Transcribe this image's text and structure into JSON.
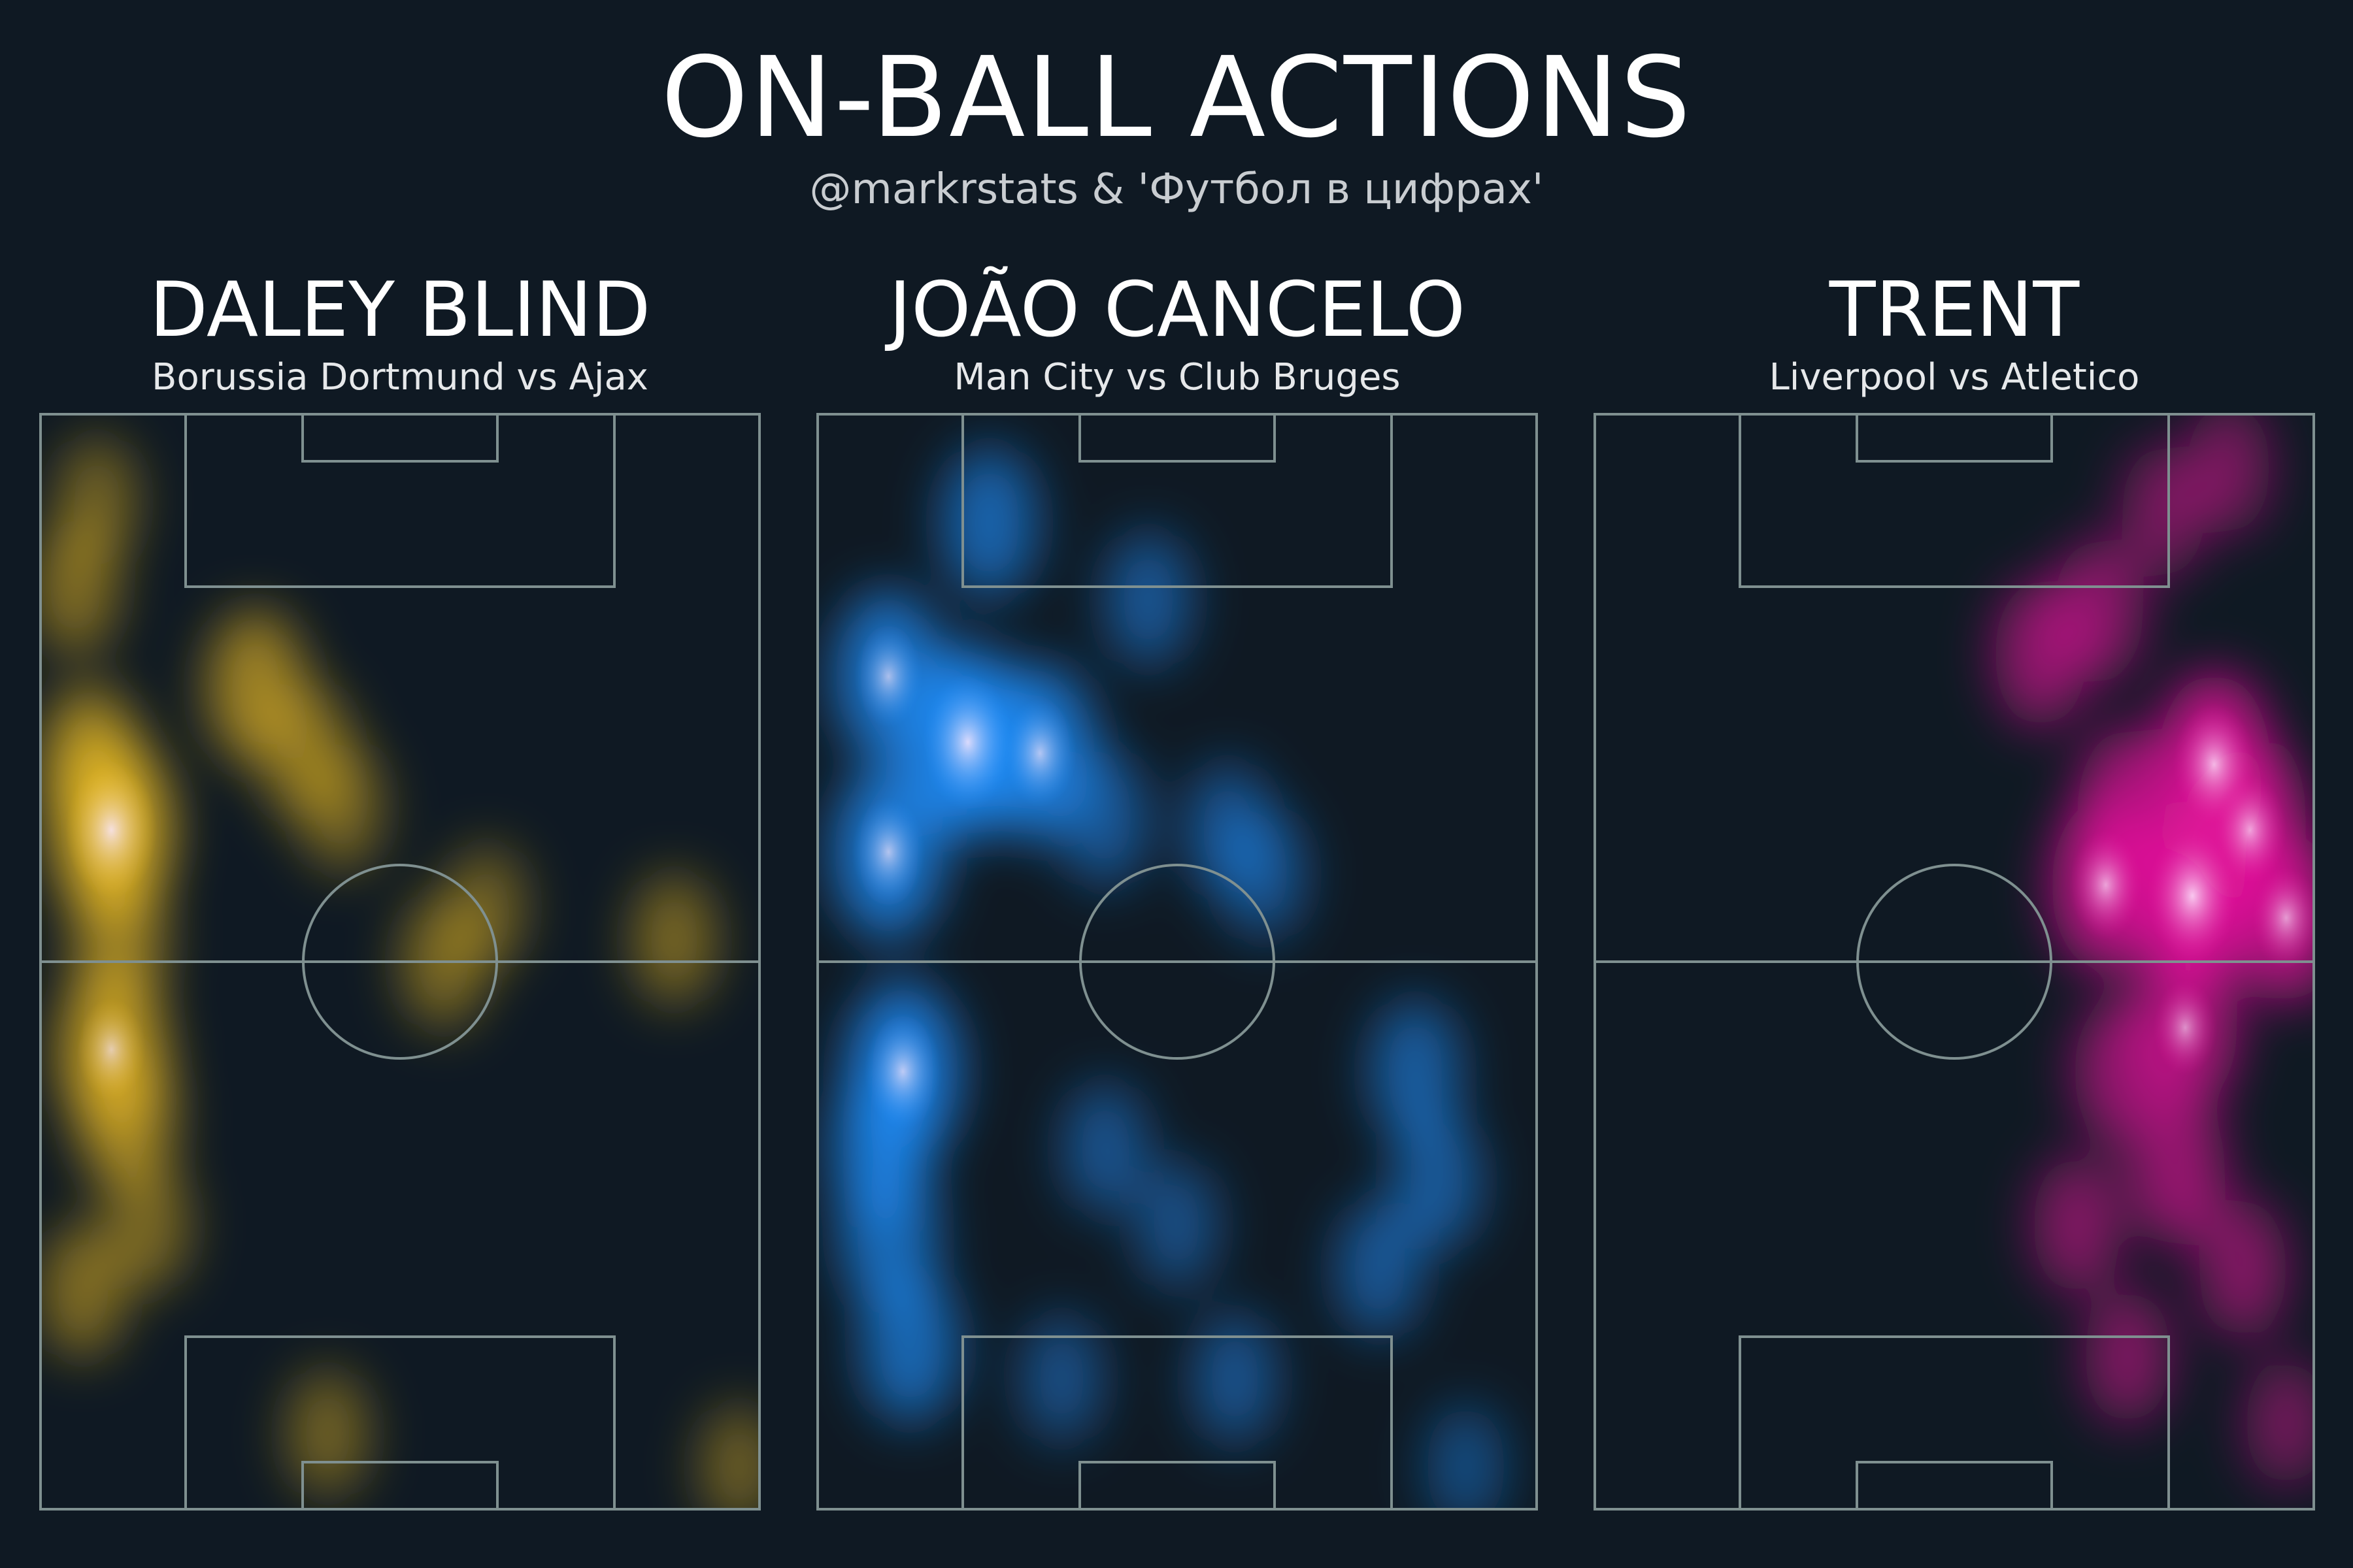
{
  "title": "ON-BALL ACTIONS",
  "credit": "@markrstats & 'Футбол в цифрах'",
  "chart_data": [
    {
      "type": "heatmap",
      "player": "DALEY BLIND",
      "match": "Borussia Dortmund vs Ajax",
      "color": "#e8b923",
      "peak_color": "#fbe9ff",
      "pitch": {
        "x_range": [
          0,
          100
        ],
        "y_range": [
          0,
          100
        ],
        "attacking_direction": "top"
      },
      "hotspots": [
        {
          "x": 10,
          "y": 62,
          "w": 1.0
        },
        {
          "x": 7,
          "y": 68,
          "w": 0.6
        },
        {
          "x": 11,
          "y": 52,
          "w": 0.45
        },
        {
          "x": 10,
          "y": 42,
          "w": 0.75
        },
        {
          "x": 12,
          "y": 36,
          "w": 0.55
        },
        {
          "x": 30,
          "y": 75,
          "w": 0.55
        },
        {
          "x": 37,
          "y": 69,
          "w": 0.35
        },
        {
          "x": 42,
          "y": 64,
          "w": 0.22
        },
        {
          "x": 5,
          "y": 84,
          "w": 0.3
        },
        {
          "x": 8,
          "y": 92,
          "w": 0.2
        },
        {
          "x": 56,
          "y": 50,
          "w": 0.28
        },
        {
          "x": 62,
          "y": 55,
          "w": 0.15
        },
        {
          "x": 88,
          "y": 52,
          "w": 0.25
        },
        {
          "x": 6,
          "y": 20,
          "w": 0.3
        },
        {
          "x": 15,
          "y": 26,
          "w": 0.25
        },
        {
          "x": 40,
          "y": 7,
          "w": 0.2
        },
        {
          "x": 97,
          "y": 4,
          "w": 0.15
        }
      ]
    },
    {
      "type": "heatmap",
      "player": "JOÃO CANCELO",
      "match": "Man City vs Club Bruges",
      "color": "#1e90ff",
      "peak_color": "#fbe9ff",
      "pitch": {
        "x_range": [
          0,
          100
        ],
        "y_range": [
          0,
          100
        ],
        "attacking_direction": "top"
      },
      "hotspots": [
        {
          "x": 21,
          "y": 70,
          "w": 1.0
        },
        {
          "x": 31,
          "y": 69,
          "w": 0.8
        },
        {
          "x": 10,
          "y": 76,
          "w": 0.75
        },
        {
          "x": 10,
          "y": 60,
          "w": 0.8
        },
        {
          "x": 12,
          "y": 40,
          "w": 0.85
        },
        {
          "x": 9,
          "y": 33,
          "w": 0.6
        },
        {
          "x": 10,
          "y": 25,
          "w": 0.55
        },
        {
          "x": 13,
          "y": 15,
          "w": 0.55
        },
        {
          "x": 24,
          "y": 90,
          "w": 0.5
        },
        {
          "x": 46,
          "y": 83,
          "w": 0.3
        },
        {
          "x": 40,
          "y": 63,
          "w": 0.3
        },
        {
          "x": 57,
          "y": 62,
          "w": 0.28
        },
        {
          "x": 62,
          "y": 58,
          "w": 0.25
        },
        {
          "x": 83,
          "y": 40,
          "w": 0.4
        },
        {
          "x": 86,
          "y": 30,
          "w": 0.35
        },
        {
          "x": 78,
          "y": 22,
          "w": 0.3
        },
        {
          "x": 40,
          "y": 33,
          "w": 0.25
        },
        {
          "x": 50,
          "y": 26,
          "w": 0.2
        },
        {
          "x": 58,
          "y": 12,
          "w": 0.25
        },
        {
          "x": 34,
          "y": 12,
          "w": 0.2
        },
        {
          "x": 90,
          "y": 4,
          "w": 0.15
        }
      ]
    },
    {
      "type": "heatmap",
      "player": "TRENT",
      "match": "Liverpool vs Atletico",
      "color": "#e6139c",
      "peak_color": "#ffe8ff",
      "pitch": {
        "x_range": [
          0,
          100
        ],
        "y_range": [
          0,
          100
        ],
        "attacking_direction": "top"
      },
      "hotspots": [
        {
          "x": 83,
          "y": 56,
          "w": 1.0
        },
        {
          "x": 86,
          "y": 68,
          "w": 0.9
        },
        {
          "x": 91,
          "y": 62,
          "w": 0.8
        },
        {
          "x": 71,
          "y": 57,
          "w": 0.8
        },
        {
          "x": 96,
          "y": 54,
          "w": 0.75
        },
        {
          "x": 74,
          "y": 64,
          "w": 0.6
        },
        {
          "x": 62,
          "y": 78,
          "w": 0.45
        },
        {
          "x": 70,
          "y": 82,
          "w": 0.4
        },
        {
          "x": 79,
          "y": 91,
          "w": 0.25
        },
        {
          "x": 88,
          "y": 95,
          "w": 0.25
        },
        {
          "x": 82,
          "y": 44,
          "w": 0.7
        },
        {
          "x": 73,
          "y": 40,
          "w": 0.45
        },
        {
          "x": 81,
          "y": 31,
          "w": 0.5
        },
        {
          "x": 67,
          "y": 26,
          "w": 0.35
        },
        {
          "x": 90,
          "y": 22,
          "w": 0.35
        },
        {
          "x": 74,
          "y": 14,
          "w": 0.3
        },
        {
          "x": 96,
          "y": 8,
          "w": 0.2
        }
      ]
    }
  ]
}
